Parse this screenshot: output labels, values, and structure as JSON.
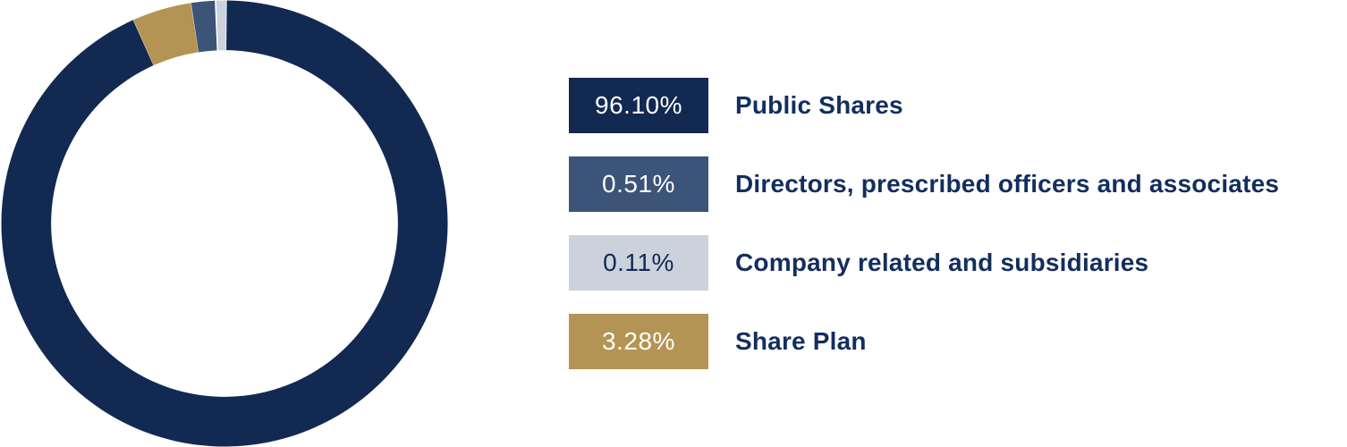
{
  "chart_data": {
    "type": "donut",
    "title": "",
    "segments": [
      {
        "label": "Public Shares",
        "value": 96.1,
        "display": "96.10%",
        "color": "#122A52",
        "badge_text_color": "#FFFFFF",
        "arc_start_deg": 0.6,
        "arc_end_deg": 335.8
      },
      {
        "label": "Directors, prescribed officers and associates",
        "value": 0.51,
        "display": "0.51%",
        "color": "#3B5478",
        "badge_text_color": "#FFFFFF",
        "arc_start_deg": 351.4,
        "arc_end_deg": 357.5
      },
      {
        "label": "Company related and subsidiaries",
        "value": 0.11,
        "display": "0.11%",
        "color": "#CBD2DD",
        "badge_text_color": "#122A52",
        "arc_start_deg": 357.9,
        "arc_end_deg": 360.4
      },
      {
        "label": "Share Plan",
        "value": 3.28,
        "display": "3.28%",
        "color": "#B39455",
        "badge_text_color": "#FFFFFF",
        "arc_start_deg": 335.9,
        "arc_end_deg": 351.3
      }
    ],
    "layout": {
      "hole_ratio": 0.777,
      "start": "top",
      "direction": "clockwise",
      "legend_position": "right",
      "legend_label_color": "#132E5E",
      "background": "#FFFFFF"
    }
  }
}
